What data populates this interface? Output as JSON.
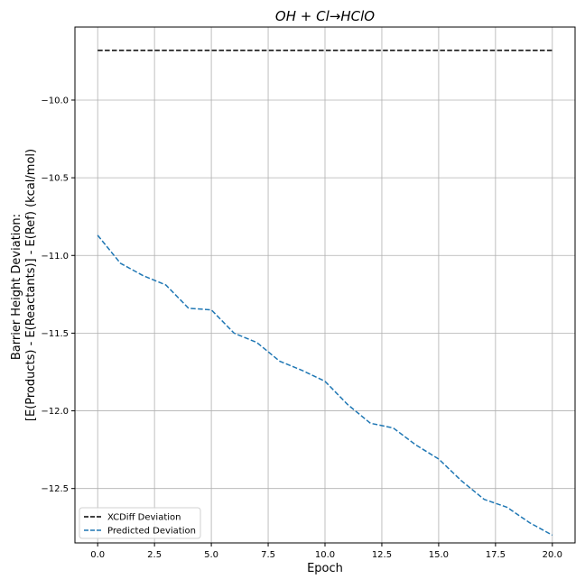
{
  "chart_data": {
    "type": "line",
    "title": "OH + Cl→HClO",
    "xlabel": "Epoch",
    "ylabel_line1": "Barrier Height Deviation:",
    "ylabel_line2": "[E(Products) - E(Reactants)] - E(Ref) (kcal/mol)",
    "xlim": [
      -1.0,
      21.0
    ],
    "ylim": [
      -12.85,
      -9.53
    ],
    "xticks": [
      0.0,
      2.5,
      5.0,
      7.5,
      10.0,
      12.5,
      15.0,
      17.5,
      20.0
    ],
    "xtick_labels": [
      "0.0",
      "2.5",
      "5.0",
      "7.5",
      "10.0",
      "12.5",
      "15.0",
      "17.5",
      "20.0"
    ],
    "yticks": [
      -10.0,
      -10.5,
      -11.0,
      -11.5,
      -12.0,
      -12.5
    ],
    "ytick_labels": [
      "−10.0",
      "−10.5",
      "−11.0",
      "−11.5",
      "−12.0",
      "−12.5"
    ],
    "grid": true,
    "legend_position": "lower-left",
    "x": [
      0,
      1,
      2,
      3,
      4,
      5,
      6,
      7,
      8,
      9,
      10,
      11,
      12,
      13,
      14,
      15,
      16,
      17,
      18,
      19,
      20
    ],
    "series": [
      {
        "name": "XCDiff Deviation",
        "color": "#000000",
        "style": "dashed",
        "values": [
          -9.68,
          -9.68,
          -9.68,
          -9.68,
          -9.68,
          -9.68,
          -9.68,
          -9.68,
          -9.68,
          -9.68,
          -9.68,
          -9.68,
          -9.68,
          -9.68,
          -9.68,
          -9.68,
          -9.68,
          -9.68,
          -9.68,
          -9.68,
          -9.68
        ]
      },
      {
        "name": "Predicted Deviation",
        "color": "#1f77b4",
        "style": "dashed",
        "values": [
          -10.87,
          -11.05,
          -11.13,
          -11.19,
          -11.34,
          -11.35,
          -11.5,
          -11.56,
          -11.68,
          -11.74,
          -11.81,
          -11.96,
          -12.08,
          -12.11,
          -12.22,
          -12.31,
          -12.45,
          -12.57,
          -12.62,
          -12.72,
          -12.8
        ]
      }
    ]
  }
}
